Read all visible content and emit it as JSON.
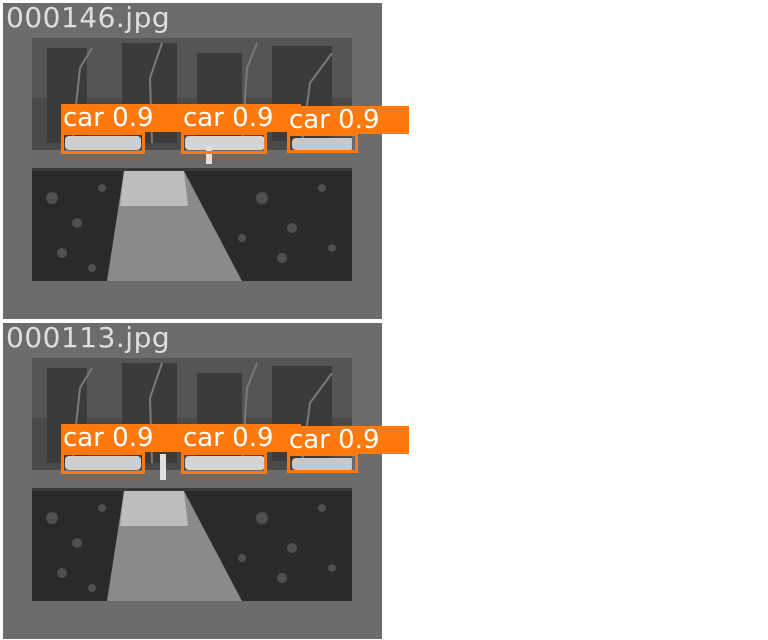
{
  "colors": {
    "tile_bg": "#6c6c6c",
    "box": "#ff7a0d",
    "label_text": "#ffffff",
    "filename_text": "#dedede"
  },
  "tiles": [
    {
      "filename": "000146.jpg",
      "detections": [
        {
          "label": "car 0.9"
        },
        {
          "label": "car 0.9"
        },
        {
          "label": "car 0.9"
        }
      ]
    },
    {
      "filename": "000113.jpg",
      "detections": [
        {
          "label": "car 0.9"
        },
        {
          "label": "car 0.9"
        },
        {
          "label": "car 0.9"
        }
      ]
    }
  ]
}
